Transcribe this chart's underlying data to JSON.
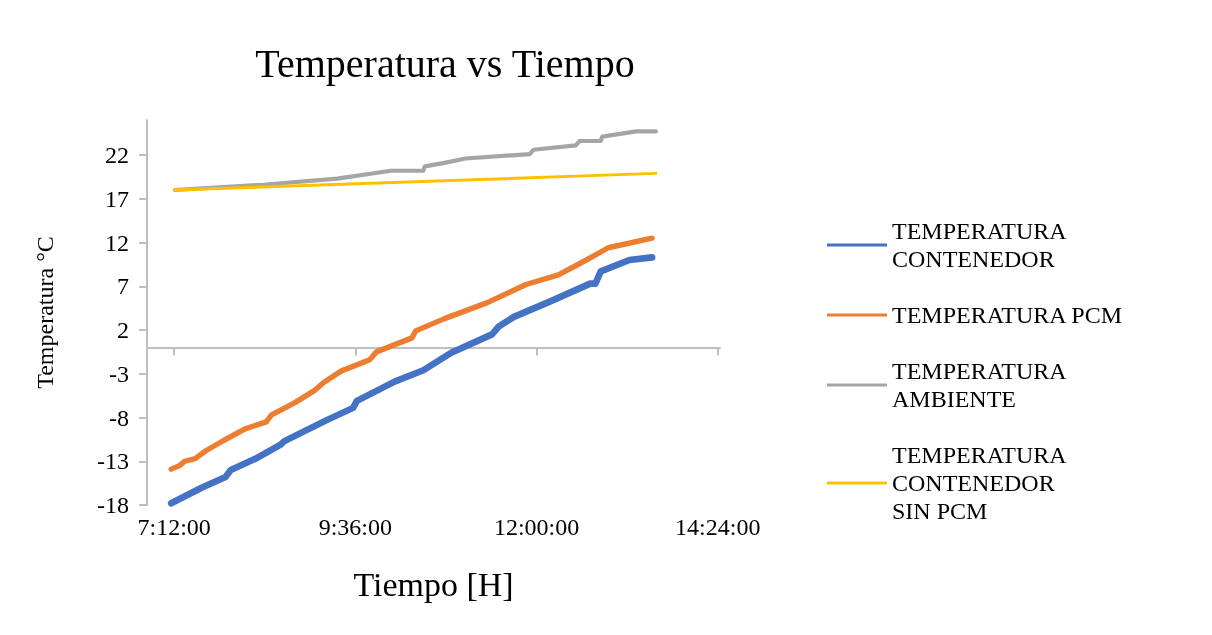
{
  "chart_data": {
    "type": "line",
    "title": "Temperatura vs Tiempo",
    "xlabel": "Tiempo [H]",
    "ylabel": "Temperatura °C",
    "xlim": [
      6.84,
      14.43
    ],
    "xticks": [
      {
        "value": 7.2,
        "label": "7:12:00"
      },
      {
        "value": 9.6,
        "label": "9:36:00"
      },
      {
        "value": 12,
        "label": "12:00:00"
      },
      {
        "value": 14.4,
        "label": "14:24:00"
      }
    ],
    "ylim": [
      -18,
      26
    ],
    "yticks": [
      -18,
      -13,
      -8,
      -3,
      2,
      7,
      12,
      17,
      22
    ],
    "grid": false,
    "legend": "right",
    "marker": "none",
    "line_style": "solid",
    "series": [
      {
        "name": "TEMPERATURA CONTENEDOR",
        "color": "#4472c4",
        "x": [
          7.16,
          7.57,
          7.88,
          7.95,
          8.28,
          8.61,
          8.66,
          9.22,
          9.57,
          9.62,
          10.12,
          10.5,
          10.87,
          11.41,
          11.5,
          11.7,
          12.19,
          12.71,
          12.78,
          12.85,
          13.23,
          13.53
        ],
        "values": [
          -17.8,
          -16.0,
          -14.8,
          -14.0,
          -12.7,
          -11.1,
          -10.7,
          -8.3,
          -6.9,
          -6.1,
          -3.9,
          -2.6,
          -0.6,
          1.5,
          2.4,
          3.5,
          5.3,
          7.3,
          7.3,
          8.7,
          10.0,
          10.3
        ]
      },
      {
        "name": "TEMPERATURA PCM",
        "color": "#ed7d31",
        "x": [
          7.16,
          7.27,
          7.34,
          7.48,
          7.62,
          7.86,
          8.14,
          8.42,
          8.49,
          8.8,
          9.06,
          9.18,
          9.41,
          9.79,
          9.88,
          10.35,
          10.4,
          10.78,
          11.34,
          11.86,
          12.29,
          12.66,
          12.95,
          13.53
        ],
        "values": [
          -13.9,
          -13.5,
          -13.0,
          -12.7,
          -11.8,
          -10.6,
          -9.3,
          -8.5,
          -7.7,
          -6.3,
          -4.9,
          -4.0,
          -2.7,
          -1.4,
          -0.5,
          1.1,
          1.9,
          3.3,
          5.1,
          7.2,
          8.3,
          10.0,
          11.4,
          12.5
        ]
      },
      {
        "name": "TEMPERATURA AMBIENTE",
        "color": "#a5a5a5",
        "x": [
          7.21,
          8.38,
          9.36,
          10.07,
          10.5,
          10.52,
          10.78,
          11.06,
          11.91,
          11.96,
          12.52,
          12.57,
          12.85,
          12.87,
          13.32,
          13.58
        ],
        "values": [
          18.0,
          18.6,
          19.3,
          20.2,
          20.2,
          20.7,
          21.1,
          21.6,
          22.1,
          22.6,
          23.1,
          23.6,
          23.6,
          24.1,
          24.7,
          24.7
        ]
      },
      {
        "name": "TEMPERATURA CONTENEDOR SIN PCM",
        "color": "#ffc000",
        "x": [
          7.21,
          13.58
        ],
        "values": [
          18.0,
          19.9
        ]
      }
    ]
  }
}
